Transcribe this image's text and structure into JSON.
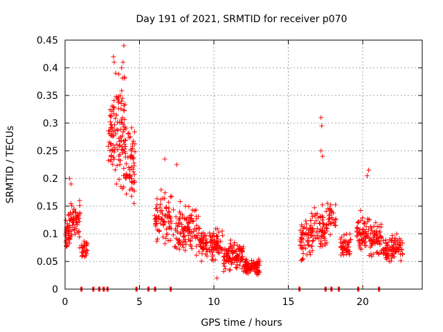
{
  "chart_data": {
    "type": "scatter",
    "title": "Day 191 of 2021, SRMTID for receiver p070",
    "xlabel": "GPS time / hours",
    "ylabel": "SRMTID / TECUs",
    "xlim": [
      0,
      24
    ],
    "ylim": [
      0,
      0.45
    ],
    "xticks": [
      0,
      5,
      10,
      15,
      20
    ],
    "yticks": [
      0,
      0.05,
      0.1,
      0.15,
      0.2,
      0.25,
      0.3,
      0.35,
      0.4,
      0.45
    ],
    "xtick_labels": [
      "0",
      "5",
      "10",
      "15",
      "20"
    ],
    "ytick_labels": [
      "0",
      "0.05",
      "0.1",
      "0.15",
      "0.2",
      "0.25",
      "0.3",
      "0.35",
      "0.4",
      "0.45"
    ],
    "grid": true,
    "marker": "+",
    "color": "#ff0000",
    "clusters": [
      {
        "x_range": [
          0.0,
          0.35
        ],
        "y_center": 0.1,
        "y_spread": 0.04,
        "n": 40
      },
      {
        "x_range": [
          0.35,
          1.0
        ],
        "y_center": 0.12,
        "y_spread": 0.055,
        "n": 55
      },
      {
        "x_range": [
          1.1,
          1.5
        ],
        "y_center": 0.07,
        "y_spread": 0.025,
        "n": 25
      },
      {
        "x_range": [
          2.9,
          3.5
        ],
        "y_center": 0.27,
        "y_spread": 0.11,
        "n": 60
      },
      {
        "x_range": [
          3.5,
          4.1
        ],
        "y_center": 0.28,
        "y_spread": 0.13,
        "n": 70
      },
      {
        "x_range": [
          4.1,
          4.7
        ],
        "y_center": 0.22,
        "y_spread": 0.09,
        "n": 55
      },
      {
        "x_range": [
          6.0,
          7.3
        ],
        "y_center": 0.13,
        "y_spread": 0.06,
        "n": 80
      },
      {
        "x_range": [
          7.3,
          9.0
        ],
        "y_center": 0.11,
        "y_spread": 0.06,
        "n": 110
      },
      {
        "x_range": [
          9.0,
          10.6
        ],
        "y_center": 0.08,
        "y_spread": 0.04,
        "n": 110
      },
      {
        "x_range": [
          10.6,
          12.0
        ],
        "y_center": 0.06,
        "y_spread": 0.035,
        "n": 110
      },
      {
        "x_range": [
          12.0,
          13.1
        ],
        "y_center": 0.04,
        "y_spread": 0.02,
        "n": 100
      },
      {
        "x_range": [
          15.8,
          16.5
        ],
        "y_center": 0.09,
        "y_spread": 0.05,
        "n": 50
      },
      {
        "x_range": [
          16.5,
          17.6
        ],
        "y_center": 0.11,
        "y_spread": 0.06,
        "n": 75
      },
      {
        "x_range": [
          17.6,
          18.2
        ],
        "y_center": 0.13,
        "y_spread": 0.04,
        "n": 30
      },
      {
        "x_range": [
          18.5,
          19.2
        ],
        "y_center": 0.08,
        "y_spread": 0.035,
        "n": 45
      },
      {
        "x_range": [
          19.6,
          20.5
        ],
        "y_center": 0.1,
        "y_spread": 0.05,
        "n": 70
      },
      {
        "x_range": [
          20.5,
          21.3
        ],
        "y_center": 0.09,
        "y_spread": 0.05,
        "n": 60
      },
      {
        "x_range": [
          21.3,
          22.7
        ],
        "y_center": 0.075,
        "y_spread": 0.03,
        "n": 90
      }
    ],
    "peaks": [
      {
        "x": 0.3,
        "y": 0.2
      },
      {
        "x": 0.4,
        "y": 0.19
      },
      {
        "x": 3.25,
        "y": 0.42
      },
      {
        "x": 3.3,
        "y": 0.41
      },
      {
        "x": 3.4,
        "y": 0.39
      },
      {
        "x": 3.95,
        "y": 0.44
      },
      {
        "x": 3.9,
        "y": 0.41
      },
      {
        "x": 3.8,
        "y": 0.4
      },
      {
        "x": 6.7,
        "y": 0.235
      },
      {
        "x": 7.5,
        "y": 0.225
      },
      {
        "x": 17.2,
        "y": 0.31
      },
      {
        "x": 17.25,
        "y": 0.295
      },
      {
        "x": 17.2,
        "y": 0.25
      },
      {
        "x": 17.3,
        "y": 0.24
      },
      {
        "x": 20.4,
        "y": 0.215
      },
      {
        "x": 20.3,
        "y": 0.205
      },
      {
        "x": 10.2,
        "y": 0.02
      }
    ],
    "zero_markers": [
      1.1,
      1.9,
      2.3,
      2.6,
      2.85,
      4.8,
      5.6,
      6.05,
      7.1,
      15.75,
      17.5,
      17.9,
      18.4,
      19.7,
      21.1
    ]
  }
}
